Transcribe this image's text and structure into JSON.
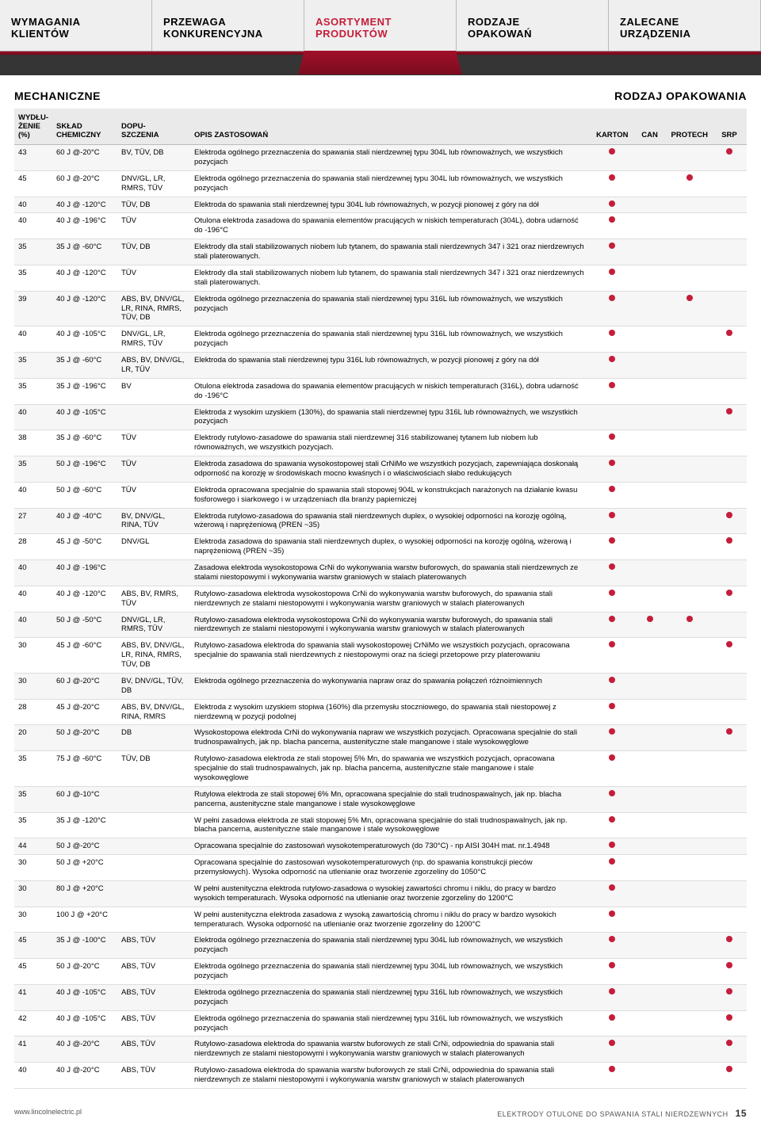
{
  "tabs": [
    {
      "label": "WYMAGANIA KLIENTÓW"
    },
    {
      "label": "PRZEWAGA KONKURENCYJNA"
    },
    {
      "label": "ASORTYMENT PRODUKTÓW",
      "active": true
    },
    {
      "label": "RODZAJE OPAKOWAŃ"
    },
    {
      "label": "ZALECANE URZĄDZENIA"
    }
  ],
  "section": {
    "mech": "MECHANICZNE",
    "pkg": "RODZAJ OPAKOWANIA",
    "col_wyd": "WYDŁU-\nŻENIE\n(%)",
    "col_skl": "SKŁAD\nCHEMICZNY",
    "col_dop": "DOPU-\nSZCZENIA",
    "col_opis": "OPIS ZASTOSOWAŃ",
    "pkg_cols": [
      "KARTON",
      "CAN",
      "PROTECH",
      "SRP"
    ]
  },
  "dot_color": "#c41e3a",
  "rows": [
    {
      "w": "43",
      "s": "60 J @-20°C",
      "d": "BV, TÜV, DB",
      "o": "Elektroda ogólnego przeznaczenia do spawania stali nierdzewnej typu 304L lub równoważnych, we wszystkich pozycjach",
      "p": [
        1,
        0,
        0,
        1
      ]
    },
    {
      "w": "45",
      "s": "60 J @-20°C",
      "d": "DNV/GL, LR, RMRS, TÜV",
      "o": "Elektroda ogólnego przeznaczenia do spawania stali nierdzewnej typu 304L lub równoważnych, we wszystkich pozycjach",
      "p": [
        1,
        0,
        1,
        0
      ]
    },
    {
      "w": "40",
      "s": "40 J @ -120°C",
      "d": "TÜV, DB",
      "o": "Elektroda do spawania stali nierdzewnej typu 304L lub równoważnych, w pozycji pionowej z góry na dół",
      "p": [
        1,
        0,
        0,
        0
      ]
    },
    {
      "w": "40",
      "s": "40 J @ -196°C",
      "d": "TÜV",
      "o": "Otulona elektroda zasadowa do spawania elementów pracujących w niskich temperaturach (304L), dobra udarność do -196°C",
      "p": [
        1,
        0,
        0,
        0
      ]
    },
    {
      "w": "35",
      "s": "35 J @ -60°C",
      "d": "TÜV, DB",
      "o": "Elektrody dla stali stabilizowanych niobem lub tytanem, do spawania stali nierdzewnych 347 i 321 oraz nierdzewnych stali platerowanych.",
      "p": [
        1,
        0,
        0,
        0
      ]
    },
    {
      "w": "35",
      "s": "40 J @ -120°C",
      "d": "TÜV",
      "o": "Elektrody dla stali stabilizowanych niobem lub tytanem, do spawania stali nierdzewnych 347 i 321 oraz nierdzewnych stali platerowanych.",
      "p": [
        1,
        0,
        0,
        0
      ]
    },
    {
      "w": "39",
      "s": "40 J @ -120°C",
      "d": "ABS, BV, DNV/GL, LR, RINA, RMRS, TÜV, DB",
      "o": "Elektroda ogólnego przeznaczenia do spawania stali nierdzewnej typu 316L lub równoważnych, we wszystkich pozycjach",
      "p": [
        1,
        0,
        1,
        0
      ]
    },
    {
      "w": "40",
      "s": "40 J @ -105°C",
      "d": "DNV/GL, LR, RMRS, TÜV",
      "o": "Elektroda ogólnego przeznaczenia do spawania stali nierdzewnej typu 316L lub równoważnych, we wszystkich pozycjach",
      "p": [
        1,
        0,
        0,
        1
      ]
    },
    {
      "w": "35",
      "s": "35 J @ -60°C",
      "d": "ABS, BV, DNV/GL, LR, TÜV",
      "o": "Elektroda do spawania stali nierdzewnej typu 316L lub równoważnych, w pozycji pionowej z góry na dół",
      "p": [
        1,
        0,
        0,
        0
      ]
    },
    {
      "w": "35",
      "s": "35 J @ -196°C",
      "d": "BV",
      "o": "Otulona elektroda zasadowa do spawania elementów pracujących w niskich temperaturach (316L), dobra udarność do -196°C",
      "p": [
        1,
        0,
        0,
        0
      ]
    },
    {
      "w": "40",
      "s": "40 J @ -105°C",
      "d": "",
      "o": "Elektroda z wysokim uzyskiem (130%), do spawania stali nierdzewnej typu 316L lub równoważnych, we wszystkich pozycjach",
      "p": [
        0,
        0,
        0,
        1
      ]
    },
    {
      "w": "38",
      "s": "35 J @ -60°C",
      "d": "TÜV",
      "o": "Elektrody rutylowo-zasadowe do spawania stali nierdzewnej 316 stabilizowanej tytanem lub niobem lub równoważnych, we wszystkich pozycjach.",
      "p": [
        1,
        0,
        0,
        0
      ]
    },
    {
      "w": "35",
      "s": "50 J @ -196°C",
      "d": "TÜV",
      "o": "Elektroda zasadowa do spawania wysokostopowej stali CrNiMo we wszystkich pozycjach, zapewniająca doskonałą odporność na korozję w środowiskach mocno kwaśnych i o właściwościach słabo redukujących",
      "p": [
        1,
        0,
        0,
        0
      ]
    },
    {
      "w": "40",
      "s": "50 J @ -60°C",
      "d": "TÜV",
      "o": "Elektroda opracowana specjalnie do spawania stali stopowej 904L w konstrukcjach narażonych na działanie kwasu fosforowego i siarkowego i w urządzeniach dla branży papierniczej",
      "p": [
        1,
        0,
        0,
        0
      ]
    },
    {
      "w": "27",
      "s": "40 J @ -40°C",
      "d": "BV, DNV/GL, RINA, TÜV",
      "o": "Elektroda rutylowo-zasadowa do spawania stali nierdzewnych duplex, o wysokiej odporności na korozję ogólną, wżerową i naprężeniową (PREN ~35)",
      "p": [
        1,
        0,
        0,
        1
      ]
    },
    {
      "w": "28",
      "s": "45 J @ -50°C",
      "d": "DNV/GL",
      "o": "Elektroda zasadowa do spawania stali nierdzewnych duplex, o wysokiej odporności na korozję ogólną, wżerową i naprężeniową (PREN ~35)",
      "p": [
        1,
        0,
        0,
        1
      ]
    },
    {
      "w": "40",
      "s": "40 J @ -196°C",
      "d": "",
      "o": "Zasadowa elektroda wysokostopowa CrNi do wykonywania warstw buforowych, do spawania stali nierdzewnych ze stalami niestopowymi i wykonywania warstw graniowych w stalach platerowanych",
      "p": [
        1,
        0,
        0,
        0
      ]
    },
    {
      "w": "40",
      "s": "40 J @ -120°C",
      "d": "ABS, BV, RMRS, TÜV",
      "o": "Rutylowo-zasadowa elektroda wysokostopowa CrNi do wykonywania warstw buforowych, do spawania stali nierdzewnych ze stalami niestopowymi i wykonywania warstw graniowych w stalach platerowanych",
      "p": [
        1,
        0,
        0,
        1
      ]
    },
    {
      "w": "40",
      "s": "50 J @ -50°C",
      "d": "DNV/GL, LR, RMRS, TÜV",
      "o": "Rutylowo-zasadowa elektroda wysokostopowa CrNi do wykonywania warstw buforowych, do spawania stali nierdzewnych ze stalami niestopowymi i wykonywania warstw graniowych w stalach platerowanych",
      "p": [
        1,
        1,
        1,
        0
      ]
    },
    {
      "w": "30",
      "s": "45 J @ -60°C",
      "d": "ABS, BV, DNV/GL, LR, RINA, RMRS, TÜV, DB",
      "o": "Rutylowo-zasadowa elektroda do spawania stali wysokostopowej CrNiMo we wszystkich pozycjach, opracowana specjalnie do spawania stali nierdzewnych z niestopowymi oraz na ściegi przetopowe przy platerowaniu",
      "p": [
        1,
        0,
        0,
        1
      ]
    },
    {
      "w": "30",
      "s": "60 J @-20°C",
      "d": "BV, DNV/GL, TÜV, DB",
      "o": "Elektroda ogólnego przeznaczenia do wykonywania napraw oraz do spawania połączeń różnoimiennych",
      "p": [
        1,
        0,
        0,
        0
      ]
    },
    {
      "w": "28",
      "s": "45 J @-20°C",
      "d": "ABS, BV, DNV/GL, RINA, RMRS",
      "o": "Elektroda z wysokim uzyskiem stopiwa (160%) dla przemysłu stoczniowego, do spawania stali niestopowej z nierdzewną w pozycji podolnej",
      "p": [
        1,
        0,
        0,
        0
      ]
    },
    {
      "w": "20",
      "s": "50 J @-20°C",
      "d": "DB",
      "o": "Wysokostopowa elektroda CrNi do wykonywania napraw we wszystkich pozycjach. Opracowana specjalnie do stali trudnospawalnych, jak np. blacha pancerna, austenityczne stale manganowe i stale wysokowęglowe",
      "p": [
        1,
        0,
        0,
        1
      ]
    },
    {
      "w": "35",
      "s": "75 J @ -60°C",
      "d": "TÜV, DB",
      "o": "Rutylowo-zasadowa elektroda ze stali stopowej 5% Mn, do spawania we wszystkich pozycjach, opracowana specjalnie do stali trudnospawalnych, jak np. blacha pancerna, austenityczne stale manganowe i stale wysokowęglowe",
      "p": [
        1,
        0,
        0,
        0
      ]
    },
    {
      "w": "35",
      "s": "60 J @-10°C",
      "d": "",
      "o": "Rutylowa elektroda ze stali stopowej 6% Mn, opracowana specjalnie do stali trudnospawalnych, jak np. blacha pancerna, austenityczne stale manganowe i stale wysokowęglowe",
      "p": [
        1,
        0,
        0,
        0
      ]
    },
    {
      "w": "35",
      "s": "35 J @ -120°C",
      "d": "",
      "o": "W pełni zasadowa elektroda ze stali stopowej 5% Mn, opracowana specjalnie do stali trudnospawalnych, jak np. blacha pancerna, austenityczne stale manganowe i stale wysokowęglowe",
      "p": [
        1,
        0,
        0,
        0
      ]
    },
    {
      "w": "44",
      "s": "50 J @-20°C",
      "d": "",
      "o": "Opracowana specjalnie do zastosowań wysokotemperaturowych (do 730°C) - np AISI 304H mat. nr.1.4948",
      "p": [
        1,
        0,
        0,
        0
      ]
    },
    {
      "w": "30",
      "s": "50 J @ +20°C",
      "d": "",
      "o": "Opracowana specjalnie do zastosowań wysokotemperaturowych (np. do spawania konstrukcji pieców przemysłowych). Wysoka odporność na utlenianie oraz tworzenie zgorzeliny do 1050°C",
      "p": [
        1,
        0,
        0,
        0
      ]
    },
    {
      "w": "30",
      "s": "80 J @ +20°C",
      "d": "",
      "o": "W pełni austenityczna elektroda rutylowo-zasadowa o wysokiej zawartości chromu i niklu, do pracy w bardzo wysokich temperaturach. Wysoka odporność na utlenianie oraz tworzenie zgorzeliny do 1200°C",
      "p": [
        1,
        0,
        0,
        0
      ]
    },
    {
      "w": "30",
      "s": "100 J @ +20°C",
      "d": "",
      "o": "W pełni austenityczna elektroda zasadowa z wysoką zawartością chromu i niklu do pracy w bardzo wysokich temperaturach. Wysoka odporność na utlenianie oraz tworzenie zgorzeliny do 1200°C",
      "p": [
        1,
        0,
        0,
        0
      ]
    },
    {
      "w": "45",
      "s": "35 J @ -100°C",
      "d": "ABS, TÜV",
      "o": "Elektroda ogólnego przeznaczenia do spawania stali nierdzewnej typu 304L lub równoważnych, we wszystkich pozycjach",
      "p": [
        1,
        0,
        0,
        1
      ]
    },
    {
      "w": "45",
      "s": "50 J @-20°C",
      "d": "ABS, TÜV",
      "o": "Elektroda ogólnego przeznaczenia do spawania stali nierdzewnej typu 304L lub równoważnych, we wszystkich pozycjach",
      "p": [
        1,
        0,
        0,
        1
      ]
    },
    {
      "w": "41",
      "s": "40 J @ -105°C",
      "d": "ABS, TÜV",
      "o": "Elektroda ogólnego przeznaczenia do spawania stali nierdzewnej typu 316L lub równoważnych, we wszystkich pozycjach",
      "p": [
        1,
        0,
        0,
        1
      ]
    },
    {
      "w": "42",
      "s": "40 J @ -105°C",
      "d": "ABS, TÜV",
      "o": "Elektroda ogólnego przeznaczenia do spawania stali nierdzewnej typu 316L lub równoważnych, we wszystkich pozycjach",
      "p": [
        1,
        0,
        0,
        1
      ]
    },
    {
      "w": "41",
      "s": "40 J @-20°C",
      "d": "ABS, TÜV",
      "o": "Rutylowo-zasadowa elektroda do spawania warstw buforowych ze stali CrNi, odpowiednia do spawania stali nierdzewnych ze stalami niestopowymi i wykonywania warstw graniowych w stalach platerowanych",
      "p": [
        1,
        0,
        0,
        1
      ]
    },
    {
      "w": "40",
      "s": "40 J @-20°C",
      "d": "ABS, TÜV",
      "o": "Rutylowo-zasadowa elektroda do spawania warstw buforowych ze stali CrNi, odpowiednia do spawania stali nierdzewnych ze stalami niestopowymi i wykonywania warstw graniowych w stalach platerowanych",
      "p": [
        1,
        0,
        0,
        1
      ]
    }
  ],
  "footer": {
    "url": "www.lincolnelectric.pl",
    "caption": "ELEKTRODY OTULONE DO SPAWANIA STALI NIERDZEWNYCH",
    "page": "15"
  }
}
